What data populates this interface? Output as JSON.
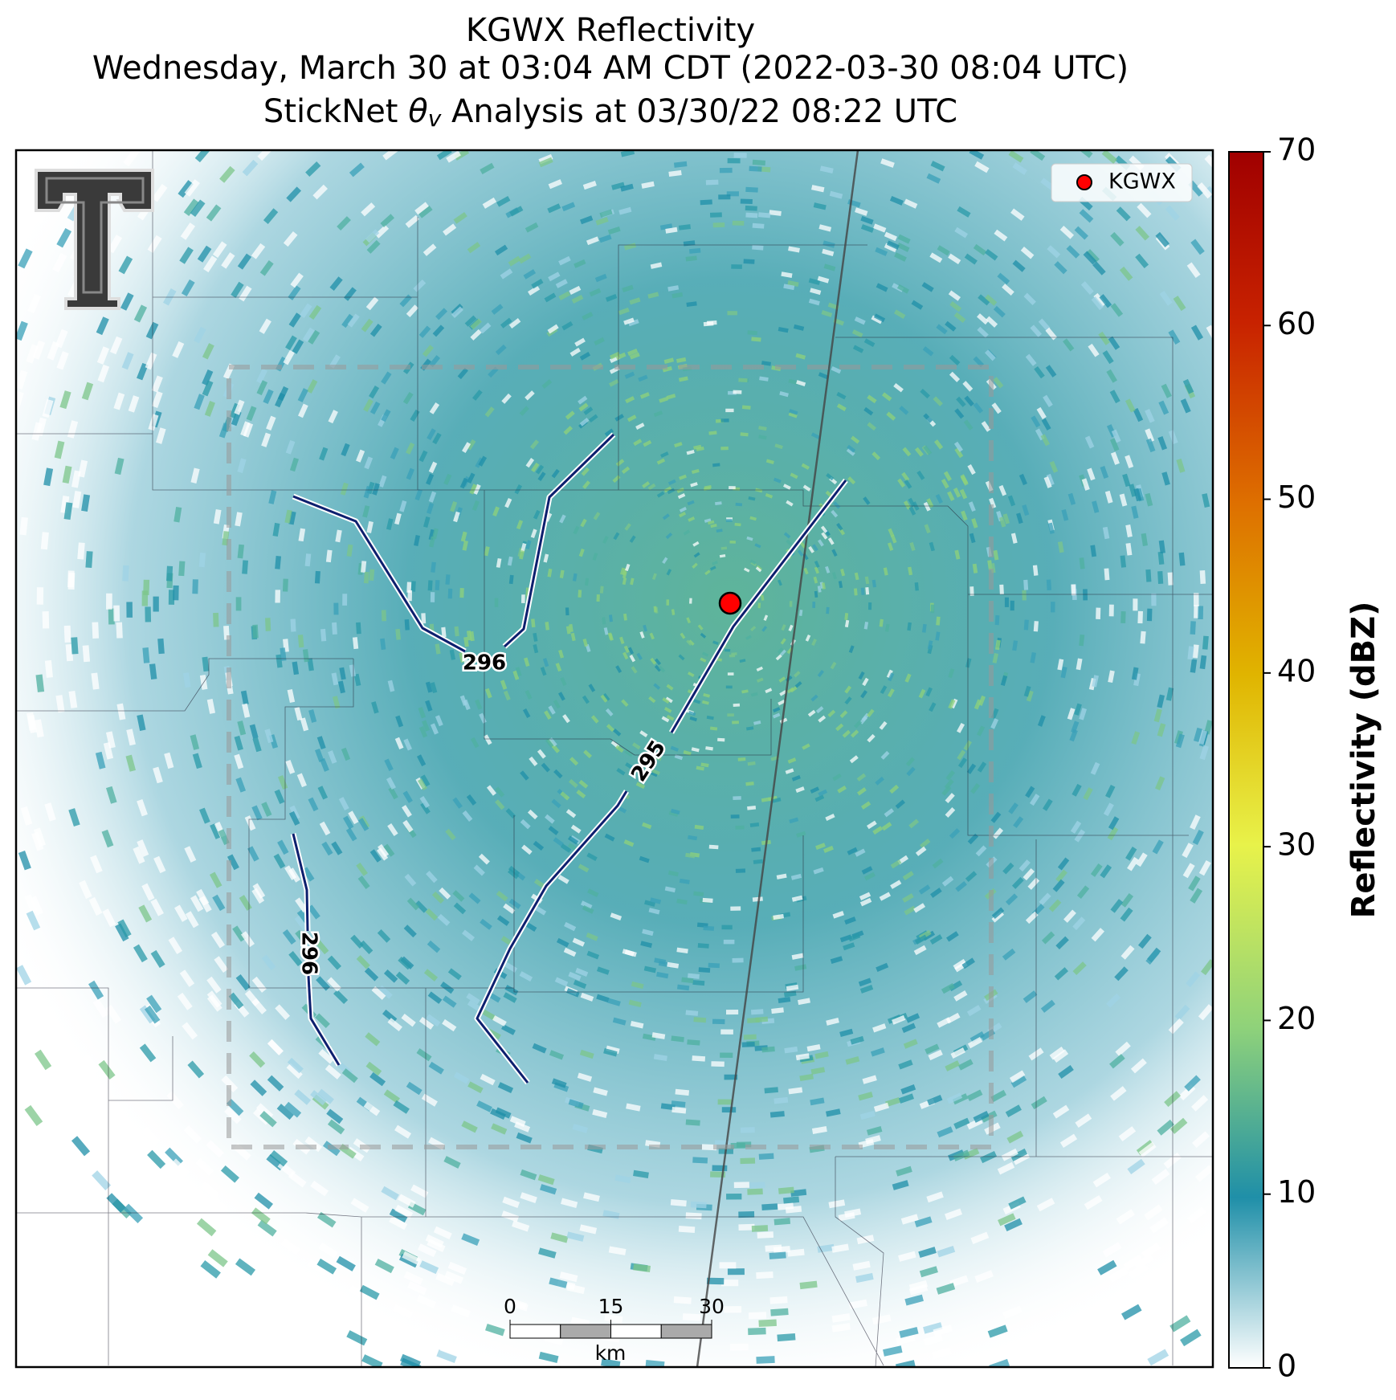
{
  "title": {
    "line1": "KGWX Reflectivity",
    "line2": "Wednesday, March 30 at 03:04 AM CDT (2022-03-30 08:04 UTC)",
    "line3": {
      "before": "StickNet ",
      "symbol": "θ",
      "subscript": "v",
      "after": " Analysis at 03/30/22 08:22 UTC"
    }
  },
  "legend": {
    "label": "KGWX"
  },
  "colorbar": {
    "label": "Reflectivity (dBZ)",
    "lim": [
      0,
      70
    ],
    "ticks": [
      0,
      10,
      20,
      30,
      40,
      50,
      60,
      70
    ]
  },
  "contours": [
    {
      "label": 296
    },
    {
      "label": 295
    },
    {
      "label": 296
    }
  ],
  "scale_bar": {
    "lim": [
      0,
      30
    ],
    "ticks": [
      0,
      15,
      30
    ],
    "unit": "km"
  }
}
